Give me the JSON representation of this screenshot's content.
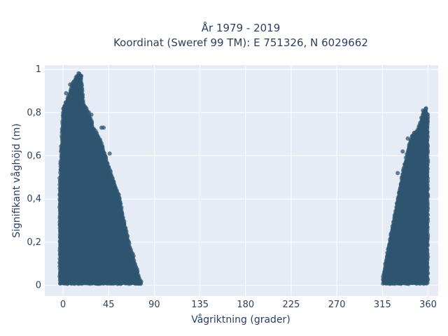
{
  "chart_data": {
    "type": "scatter",
    "title_line1": "År 1979 - 2019",
    "title_line2": "Koordinat (Sweref 99 TM): E 751326, N 6029662",
    "xlabel": "Vågriktning (grader)",
    "ylabel": "Signifikant våghöjd (m)",
    "xlim": [
      -18,
      370
    ],
    "ylim": [
      -0.05,
      1.02
    ],
    "x_ticks": [
      0,
      45,
      90,
      135,
      180,
      225,
      270,
      315,
      360
    ],
    "y_ticks": [
      0,
      0.2,
      0.4,
      0.6,
      0.8,
      1
    ],
    "y_tick_labels": [
      "0",
      "0,2",
      "0,4",
      "0,6",
      "0,8",
      "1"
    ],
    "grid": true,
    "colors": {
      "plot_background": "#e5ecf6",
      "grid": "#ffffff",
      "marker": "#2f5670"
    },
    "clusters": [
      {
        "x_range": [
          -3,
          77
        ],
        "envelope_x": [
          -3,
          0,
          5,
          10,
          15,
          18,
          20,
          25,
          30,
          35,
          40,
          45,
          50,
          55,
          60,
          65,
          70,
          75,
          77
        ],
        "envelope_y": [
          0.5,
          0.82,
          0.87,
          0.94,
          0.98,
          0.97,
          0.85,
          0.8,
          0.73,
          0.69,
          0.63,
          0.55,
          0.48,
          0.42,
          0.3,
          0.2,
          0.12,
          0.04,
          0.02
        ]
      },
      {
        "x_range": [
          316,
          360
        ],
        "envelope_x": [
          316,
          320,
          325,
          330,
          335,
          340,
          345,
          350,
          355,
          358,
          360
        ],
        "envelope_y": [
          0.05,
          0.15,
          0.28,
          0.4,
          0.52,
          0.63,
          0.7,
          0.72,
          0.8,
          0.82,
          0.78
        ]
      }
    ],
    "outliers": [
      {
        "x": 3,
        "y": 0.89
      },
      {
        "x": 7,
        "y": 0.93
      },
      {
        "x": 16,
        "y": 0.98
      },
      {
        "x": 18,
        "y": 0.97
      },
      {
        "x": 28,
        "y": 0.79
      },
      {
        "x": 38,
        "y": 0.73
      },
      {
        "x": 40,
        "y": 0.73
      },
      {
        "x": 46,
        "y": 0.61
      },
      {
        "x": 50,
        "y": 0.48
      },
      {
        "x": 55,
        "y": 0.42
      },
      {
        "x": 60,
        "y": 0.28
      },
      {
        "x": 330,
        "y": 0.52
      },
      {
        "x": 335,
        "y": 0.62
      },
      {
        "x": 340,
        "y": 0.68
      },
      {
        "x": 355,
        "y": 0.81
      },
      {
        "x": 358,
        "y": 0.82
      }
    ]
  }
}
